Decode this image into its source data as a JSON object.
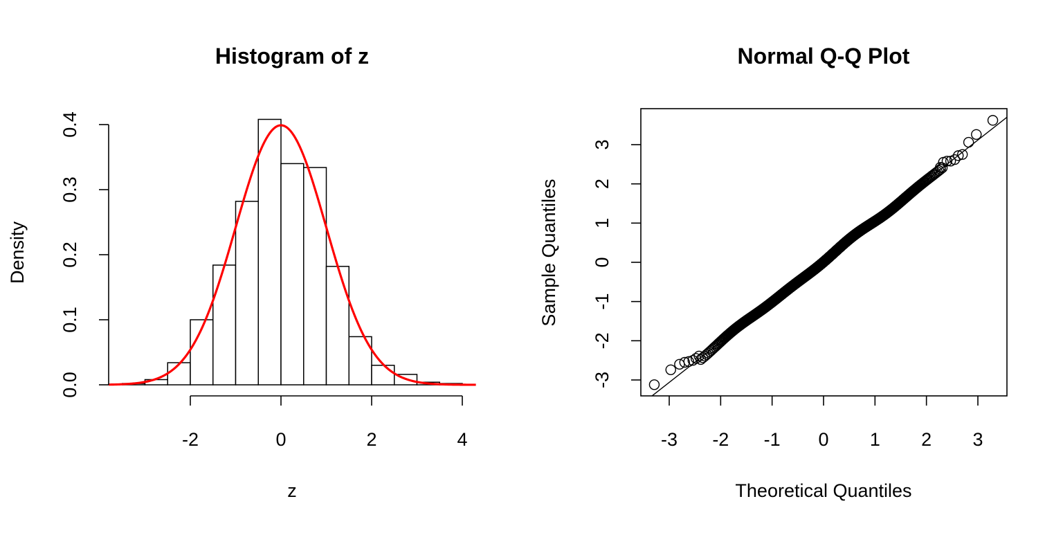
{
  "chart_data": [
    {
      "type": "bar",
      "title": "Histogram of z",
      "xlabel": "z",
      "ylabel": "Density",
      "xlim": [
        -4,
        4.3
      ],
      "ylim": [
        0,
        0.4
      ],
      "x_ticks": [
        -2,
        0,
        2,
        4
      ],
      "x_tick_labels": [
        "-2",
        "0",
        "2",
        "4"
      ],
      "y_ticks": [
        0,
        0.1,
        0.2,
        0.3,
        0.4
      ],
      "y_tick_labels": [
        "0.0",
        "0.1",
        "0.2",
        "0.3",
        "0.4"
      ],
      "bin_edges": [
        -3.5,
        -3.0,
        -2.5,
        -2.0,
        -1.5,
        -1.0,
        -0.5,
        0.0,
        0.5,
        1.0,
        1.5,
        2.0,
        2.5,
        3.0,
        3.5,
        4.0
      ],
      "density": [
        0.002,
        0.008,
        0.034,
        0.1,
        0.184,
        0.282,
        0.408,
        0.34,
        0.334,
        0.182,
        0.074,
        0.03,
        0.016,
        0.004,
        0.002
      ],
      "bar_fill": "#ffffff",
      "bar_stroke": "#000000",
      "overlay": {
        "type": "line",
        "description": "standard normal density",
        "mean": 0,
        "sd": 1,
        "x_range": [
          -3.8,
          4.3
        ],
        "color": "#ff0000"
      },
      "grid": false
    },
    {
      "type": "scatter",
      "title": "Normal Q-Q Plot",
      "xlabel": "Theoretical Quantiles",
      "ylabel": "Sample Quantiles",
      "xlim": [
        -3.5,
        3.6
      ],
      "ylim": [
        -3.4,
        3.9
      ],
      "x_ticks": [
        -3,
        -2,
        -1,
        0,
        1,
        2,
        3
      ],
      "x_tick_labels": [
        "-3",
        "-2",
        "-1",
        "0",
        "1",
        "2",
        "3"
      ],
      "y_ticks": [
        -3,
        -2,
        -1,
        0,
        1,
        2,
        3
      ],
      "y_tick_labels": [
        "-3",
        "-2",
        "-1",
        "0",
        "1",
        "2",
        "3"
      ],
      "n_points": 1000,
      "tail_points": [
        [
          -3.29,
          -3.12
        ],
        [
          -2.97,
          -2.74
        ],
        [
          -2.8,
          -2.6
        ],
        [
          -2.7,
          -2.55
        ],
        [
          -2.62,
          -2.53
        ],
        [
          -2.54,
          -2.5
        ],
        [
          -2.48,
          -2.45
        ],
        [
          -2.42,
          -2.39
        ],
        [
          2.27,
          2.42
        ],
        [
          2.33,
          2.55
        ],
        [
          2.4,
          2.58
        ],
        [
          2.47,
          2.58
        ],
        [
          2.55,
          2.62
        ],
        [
          2.62,
          2.72
        ],
        [
          2.7,
          2.75
        ],
        [
          2.82,
          3.06
        ],
        [
          2.97,
          3.26
        ],
        [
          3.29,
          3.62
        ]
      ],
      "reference_line": {
        "intercept": 0.028,
        "slope": 1.03,
        "color": "#000000"
      },
      "marker": "open-circle",
      "grid": false
    }
  ]
}
